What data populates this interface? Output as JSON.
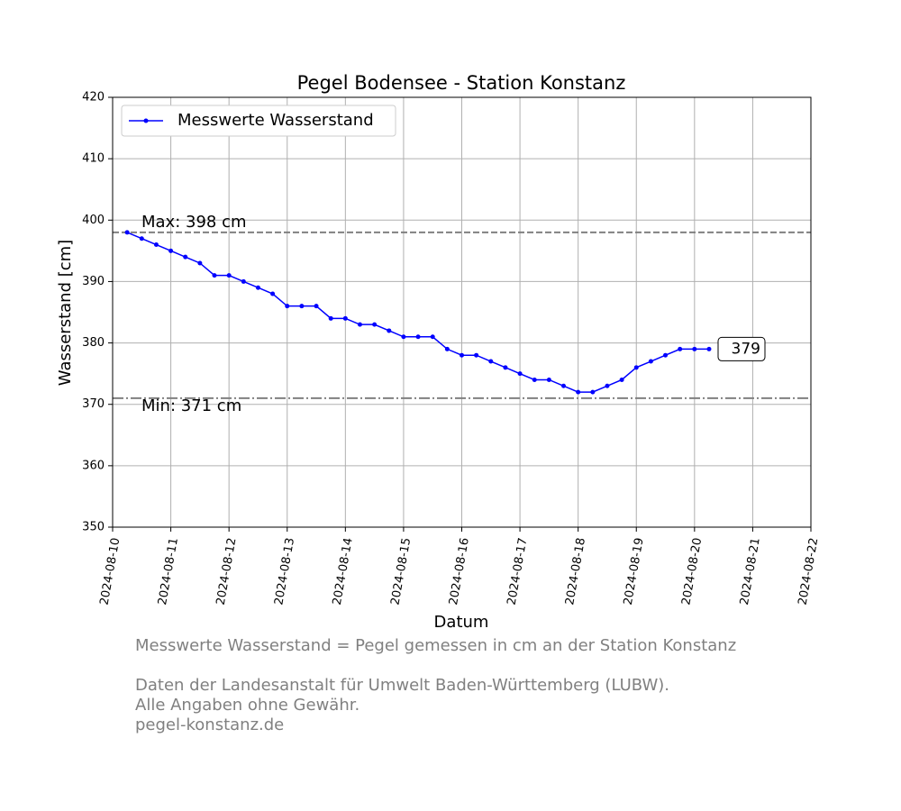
{
  "chart_data": {
    "type": "line",
    "title": "Pegel Bodensee - Station Konstanz",
    "x_label": "Datum",
    "y_label": "Wasserstand [cm]",
    "x": [
      "2024-08-10T06:00",
      "2024-08-10T12:00",
      "2024-08-10T18:00",
      "2024-08-11T00:00",
      "2024-08-11T06:00",
      "2024-08-11T12:00",
      "2024-08-11T18:00",
      "2024-08-12T00:00",
      "2024-08-12T06:00",
      "2024-08-12T12:00",
      "2024-08-12T18:00",
      "2024-08-13T00:00",
      "2024-08-13T06:00",
      "2024-08-13T12:00",
      "2024-08-13T18:00",
      "2024-08-14T00:00",
      "2024-08-14T06:00",
      "2024-08-14T12:00",
      "2024-08-14T18:00",
      "2024-08-15T00:00",
      "2024-08-15T06:00",
      "2024-08-15T12:00",
      "2024-08-15T18:00",
      "2024-08-16T00:00",
      "2024-08-16T06:00",
      "2024-08-16T12:00",
      "2024-08-16T18:00",
      "2024-08-17T00:00",
      "2024-08-17T06:00",
      "2024-08-17T12:00",
      "2024-08-17T18:00",
      "2024-08-18T00:00",
      "2024-08-18T06:00",
      "2024-08-18T12:00",
      "2024-08-18T18:00",
      "2024-08-19T00:00",
      "2024-08-19T06:00",
      "2024-08-19T12:00",
      "2024-08-19T18:00",
      "2024-08-20T00:00",
      "2024-08-20T06:00"
    ],
    "series": [
      {
        "name": "Messwerte Wasserstand",
        "color": "#0000ff",
        "values": [
          398,
          397,
          396,
          395,
          394,
          393,
          391,
          391,
          390,
          389,
          388,
          386,
          386,
          386,
          384,
          384,
          383,
          383,
          382,
          381,
          381,
          381,
          379,
          378,
          378,
          377,
          376,
          375,
          374,
          374,
          373,
          372,
          372,
          373,
          374,
          376,
          377,
          378,
          379,
          379,
          379
        ]
      }
    ],
    "last_label": 379,
    "hlines": [
      {
        "value": 398,
        "label": "Max: 398 cm",
        "style": "dashed",
        "color": "#808080"
      },
      {
        "value": 371,
        "label": "Min: 371 cm",
        "style": "dashdot",
        "color": "#808080"
      }
    ],
    "xlim": [
      "2024-08-10",
      "2024-08-22"
    ],
    "xticks": [
      "2024-08-10",
      "2024-08-11",
      "2024-08-12",
      "2024-08-13",
      "2024-08-14",
      "2024-08-15",
      "2024-08-16",
      "2024-08-17",
      "2024-08-18",
      "2024-08-19",
      "2024-08-20",
      "2024-08-21",
      "2024-08-22"
    ],
    "ylim": [
      350,
      420
    ],
    "yticks": [
      350,
      360,
      370,
      380,
      390,
      400,
      410,
      420
    ],
    "grid": true,
    "legend": "upper left",
    "footnotes": [
      "Messwerte Wasserstand = Pegel gemessen in cm an der Station Konstanz",
      "Daten der Landesanstalt für Umwelt Baden-Württemberg (LUBW).",
      "Alle Angaben ohne Gewähr.",
      "pegel-konstanz.de"
    ]
  }
}
